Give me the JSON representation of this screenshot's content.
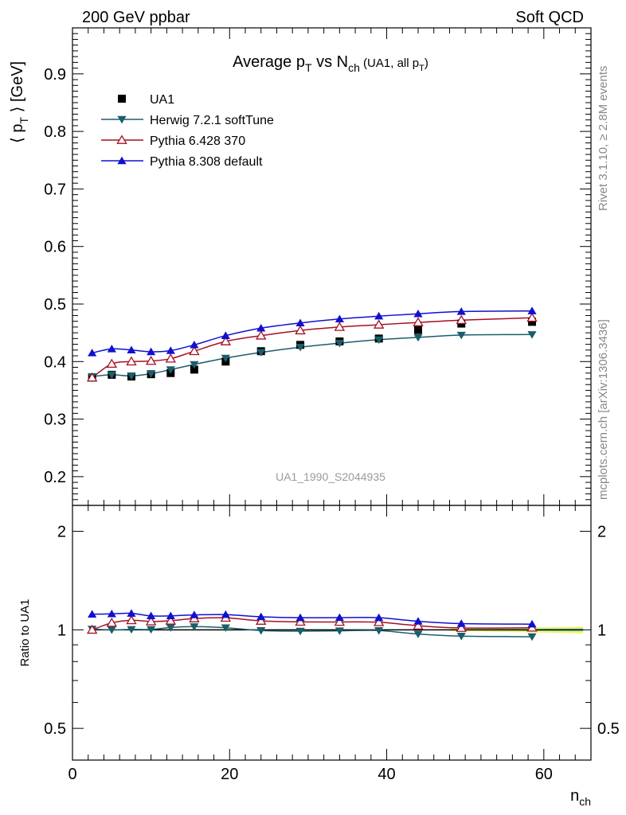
{
  "header": {
    "left": "200 GeV ppbar",
    "right": "Soft QCD"
  },
  "side_labels": {
    "rivet": "Rivet 3.1.10, ≥ 2.8M events",
    "mcplots": "mcplots.cern.ch [arXiv:1306.3436]"
  },
  "colors": {
    "ua1": "#000000",
    "herwig": "#1b5e6b",
    "pythia6": "#a50f22",
    "pythia8": "#1010d0",
    "band_yellow": "#f5f56a",
    "band_green": "#9ee59e"
  },
  "chart_data": [
    {
      "type": "scatter",
      "title": {
        "prefix": "Average p",
        "sub1": "T",
        "mid": " vs N",
        "sub2": "ch",
        "suffix_open": " (UA1, all p",
        "sub3": "T",
        "suffix_close": ")"
      },
      "ylabel": {
        "open": "⟨ p",
        "sub": "T",
        "close": " ⟩ [GeV]"
      },
      "xlim": [
        0,
        66
      ],
      "ylim": [
        0.15,
        0.98
      ],
      "yticks": [
        "0.2",
        "0.3",
        "0.4",
        "0.5",
        "0.6",
        "0.7",
        "0.8",
        "0.9"
      ],
      "watermark": "UA1_1990_S2044935",
      "legend_position": "top-left",
      "series": [
        {
          "name": "UA1",
          "key": "ua1",
          "marker": "square",
          "x": [
            2.5,
            5,
            7.5,
            10,
            12.5,
            15.5,
            19.5,
            24,
            29,
            34,
            39,
            44,
            49.5,
            58.5
          ],
          "y": [
            0.372,
            0.377,
            0.374,
            0.378,
            0.38,
            0.386,
            0.4,
            0.418,
            0.429,
            0.435,
            0.44,
            0.455,
            0.466,
            0.469
          ]
        },
        {
          "name": "Herwig 7.2.1 softTune",
          "key": "herwig",
          "marker": "triangle-down",
          "x": [
            2.5,
            5,
            7.5,
            10,
            12.5,
            15.5,
            19.5,
            24,
            29,
            34,
            39,
            44,
            49.5,
            58.5
          ],
          "y": [
            0.374,
            0.377,
            0.375,
            0.379,
            0.386,
            0.395,
            0.406,
            0.416,
            0.425,
            0.432,
            0.438,
            0.442,
            0.446,
            0.447
          ]
        },
        {
          "name": "Pythia 6.428 370",
          "key": "pythia6",
          "marker": "triangle-up-open",
          "x": [
            2.5,
            5,
            7.5,
            10,
            12.5,
            15.5,
            19.5,
            24,
            29,
            34,
            39,
            44,
            49.5,
            58.5
          ],
          "y": [
            0.372,
            0.396,
            0.4,
            0.401,
            0.405,
            0.418,
            0.435,
            0.445,
            0.454,
            0.46,
            0.464,
            0.468,
            0.472,
            0.476
          ]
        },
        {
          "name": "Pythia 8.308 default",
          "key": "pythia8",
          "marker": "triangle-up",
          "x": [
            2.5,
            5,
            7.5,
            10,
            12.5,
            15.5,
            19.5,
            24,
            29,
            34,
            39,
            44,
            49.5,
            58.5
          ],
          "y": [
            0.415,
            0.422,
            0.42,
            0.417,
            0.419,
            0.429,
            0.445,
            0.458,
            0.467,
            0.474,
            0.479,
            0.483,
            0.487,
            0.488
          ]
        }
      ]
    },
    {
      "type": "scatter",
      "ylabel": "Ratio to UA1",
      "xlabel": {
        "main": "n",
        "sub": "ch"
      },
      "xlim": [
        0,
        66
      ],
      "xticks": [
        "0",
        "20",
        "40",
        "60"
      ],
      "yscale": "log",
      "ylim": [
        0.4,
        2.4
      ],
      "yticks": [
        "0.5",
        "1",
        "2"
      ],
      "band_x": [
        48,
        65
      ],
      "series": [
        {
          "key": "herwig",
          "marker": "triangle-down",
          "x": [
            2.5,
            5,
            7.5,
            10,
            12.5,
            15.5,
            19.5,
            24,
            29,
            34,
            39,
            44,
            49.5,
            58.5
          ],
          "y": [
            1.005,
            1.0,
            1.003,
            1.003,
            1.016,
            1.023,
            1.015,
            0.995,
            0.991,
            0.993,
            0.995,
            0.971,
            0.957,
            0.953
          ]
        },
        {
          "key": "pythia6",
          "marker": "triangle-up-open",
          "x": [
            2.5,
            5,
            7.5,
            10,
            12.5,
            15.5,
            19.5,
            24,
            29,
            34,
            39,
            44,
            49.5,
            58.5
          ],
          "y": [
            1.0,
            1.05,
            1.069,
            1.061,
            1.066,
            1.083,
            1.088,
            1.065,
            1.058,
            1.057,
            1.055,
            1.029,
            1.013,
            1.015
          ]
        },
        {
          "key": "pythia8",
          "marker": "triangle-up",
          "x": [
            2.5,
            5,
            7.5,
            10,
            12.5,
            15.5,
            19.5,
            24,
            29,
            34,
            39,
            44,
            49.5,
            58.5
          ],
          "y": [
            1.116,
            1.119,
            1.123,
            1.103,
            1.103,
            1.111,
            1.113,
            1.096,
            1.089,
            1.09,
            1.089,
            1.062,
            1.045,
            1.041
          ]
        }
      ]
    }
  ]
}
